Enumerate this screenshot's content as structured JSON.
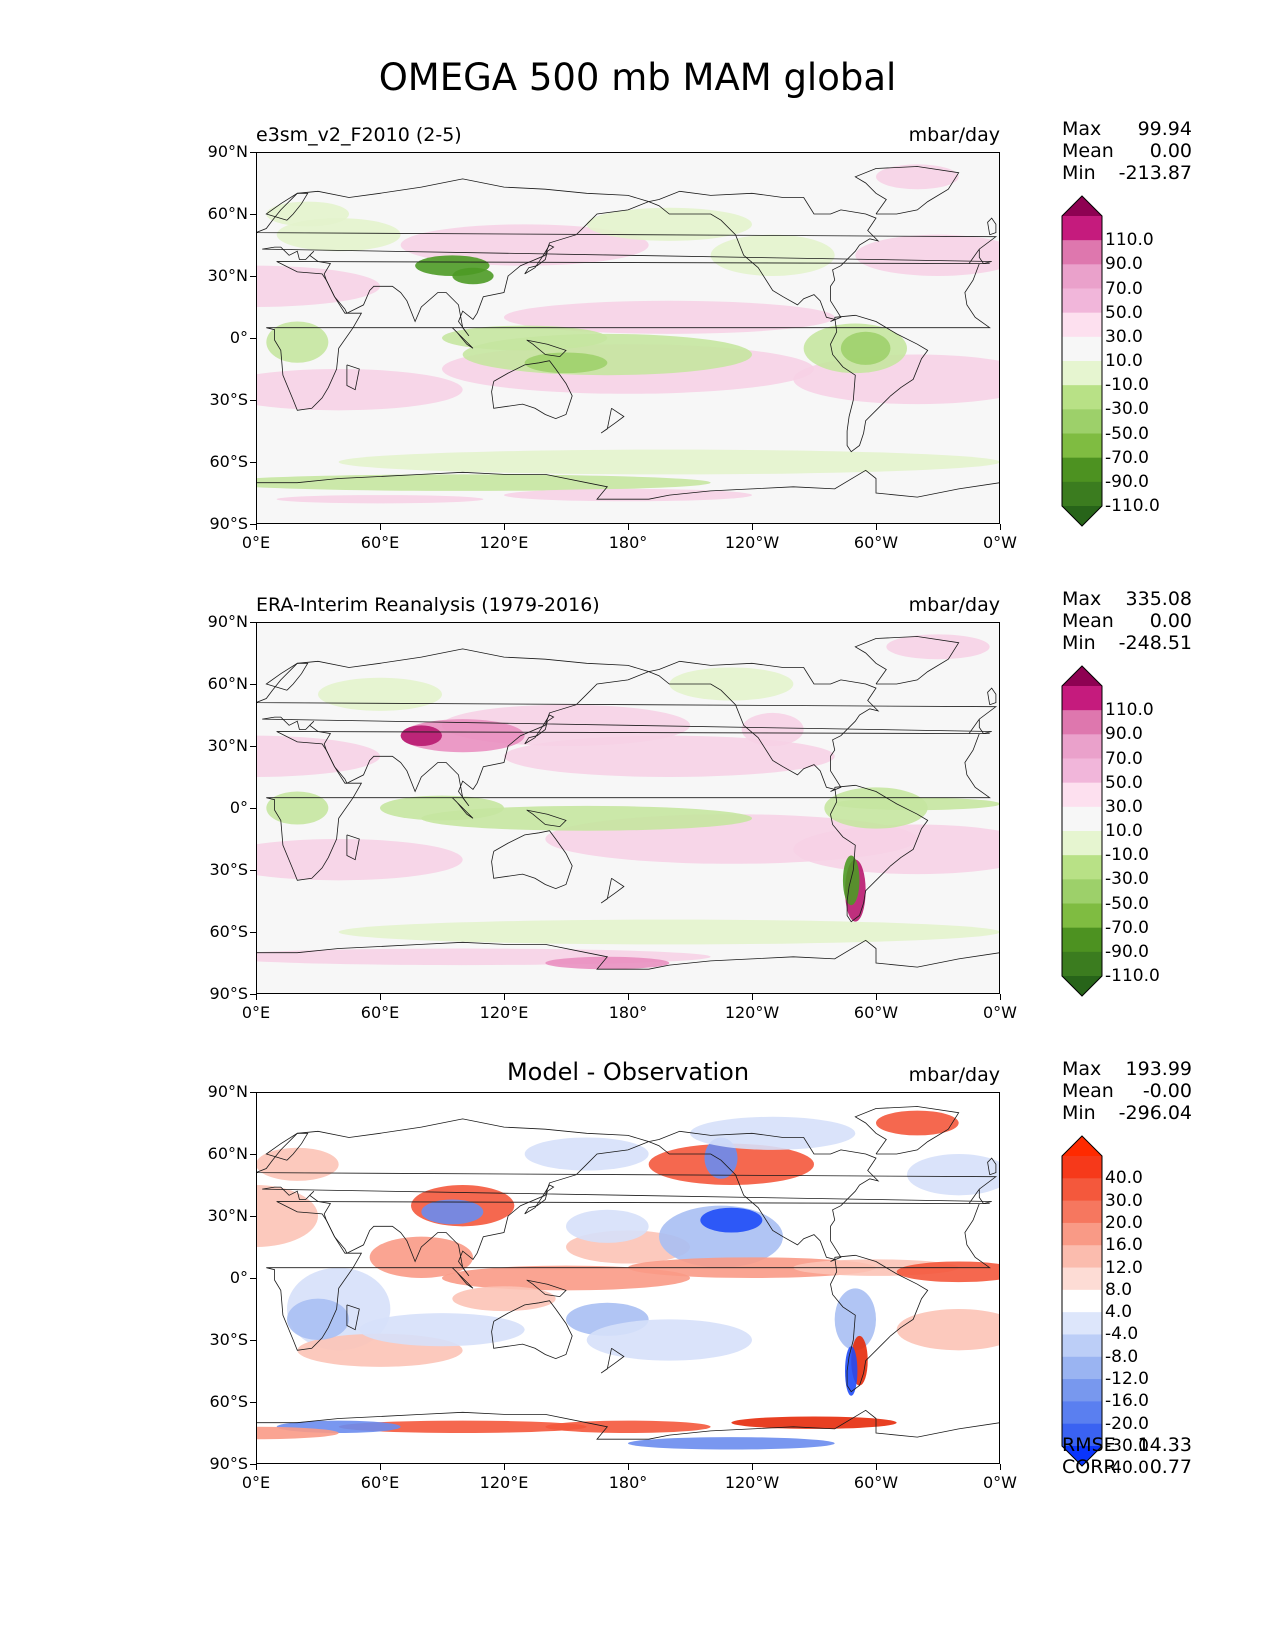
{
  "figure_title": "OMEGA 500 mb MAM global",
  "lat_labels": [
    "90°N",
    "60°N",
    "30°N",
    "0°",
    "30°S",
    "60°S",
    "90°S"
  ],
  "lon_labels": [
    "0°E",
    "60°E",
    "120°E",
    "180°",
    "120°W",
    "60°W",
    "0°W"
  ],
  "panels": [
    {
      "title_left": "e3sm_v2_F2010 (2-5)",
      "title_center": "",
      "units": "mbar/day",
      "stats": [
        {
          "label": "Max",
          "value": "99.94"
        },
        {
          "label": "Mean",
          "value": "0.00"
        },
        {
          "label": "Min",
          "value": "-213.87"
        }
      ],
      "footer_stats": []
    },
    {
      "title_left": "ERA-Interim Reanalysis (1979-2016)",
      "title_center": "",
      "units": "mbar/day",
      "stats": [
        {
          "label": "Max",
          "value": "335.08"
        },
        {
          "label": "Mean",
          "value": "0.00"
        },
        {
          "label": "Min",
          "value": "-248.51"
        }
      ],
      "footer_stats": []
    },
    {
      "title_left": "",
      "title_center": "Model - Observation",
      "units": "mbar/day",
      "stats": [
        {
          "label": "Max",
          "value": "193.99"
        },
        {
          "label": "Mean",
          "value": "-0.00"
        },
        {
          "label": "Min",
          "value": "-296.04"
        }
      ],
      "footer_stats": [
        {
          "label": "RMSE",
          "value": "14.33"
        },
        {
          "label": "CORR",
          "value": "0.77"
        }
      ]
    }
  ],
  "colorbars": {
    "field": {
      "levels": [
        "110.0",
        "90.0",
        "70.0",
        "50.0",
        "30.0",
        "10.0",
        "-10.0",
        "-30.0",
        "-50.0",
        "-70.0",
        "-90.0",
        "-110.0"
      ],
      "colors": [
        "#8e0152",
        "#c51b7d",
        "#de77ae",
        "#eaa1cb",
        "#f1b6da",
        "#fde0ef",
        "#f7f7f7",
        "#e6f5d0",
        "#b8e186",
        "#9dd06a",
        "#7fbc41",
        "#4d9221",
        "#3b7c1f",
        "#276419"
      ]
    },
    "diff": {
      "levels": [
        "40.0",
        "30.0",
        "20.0",
        "16.0",
        "12.0",
        "8.0",
        "4.0",
        "-4.0",
        "-8.0",
        "-12.0",
        "-16.0",
        "-20.0",
        "-30.0",
        "-40.0"
      ],
      "colors": [
        "#ff2a00",
        "#f6391a",
        "#f4583c",
        "#f6775f",
        "#f99a86",
        "#fbbcae",
        "#fddcd5",
        "#ffffff",
        "#dde6fb",
        "#bccef7",
        "#9ab4f2",
        "#7898ee",
        "#5a7ff0",
        "#3a62f2",
        "#0a35fc"
      ]
    }
  },
  "chart_data": [
    {
      "type": "heatmap",
      "title": "e3sm_v2_F2010 (2-5)",
      "units": "mbar/day",
      "x_range": [
        0,
        360
      ],
      "y_range": [
        -90,
        90
      ],
      "max": 99.94,
      "mean": 0.0,
      "min": -213.87,
      "contour_levels": [
        -110,
        -90,
        -70,
        -50,
        -30,
        -10,
        10,
        30,
        50,
        70,
        90,
        110
      ],
      "colormap": "PiYG_r"
    },
    {
      "type": "heatmap",
      "title": "ERA-Interim Reanalysis (1979-2016)",
      "units": "mbar/day",
      "x_range": [
        0,
        360
      ],
      "y_range": [
        -90,
        90
      ],
      "max": 335.08,
      "mean": 0.0,
      "min": -248.51,
      "contour_levels": [
        -110,
        -90,
        -70,
        -50,
        -30,
        -10,
        10,
        30,
        50,
        70,
        90,
        110
      ],
      "colormap": "PiYG_r"
    },
    {
      "type": "heatmap",
      "title": "Model - Observation",
      "units": "mbar/day",
      "x_range": [
        0,
        360
      ],
      "y_range": [
        -90,
        90
      ],
      "max": 193.99,
      "mean": -0.0,
      "min": -296.04,
      "rmse": 14.33,
      "corr": 0.77,
      "contour_levels": [
        -40,
        -30,
        -20,
        -16,
        -12,
        -8,
        -4,
        4,
        8,
        12,
        16,
        20,
        30,
        40
      ],
      "colormap": "bwr"
    }
  ]
}
